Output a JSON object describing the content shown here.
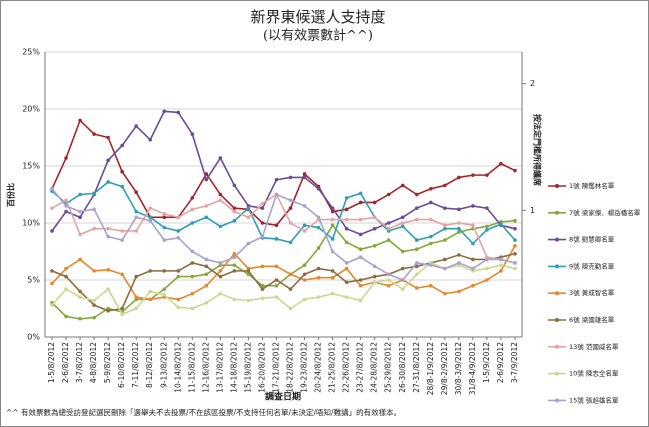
{
  "chart_data": {
    "type": "line",
    "title": "新界東候選人支持度",
    "subtitle": "(以有效票數計^^)",
    "ylabel": "百份比",
    "y2label": "按法定門檻所得議席",
    "xlabel": "調查日期",
    "footnote": "^^ 有效票數為總受訪登記選民刪除「選舉夫不去投票/不在該區投票/不支持任何名單/未決定/唔知/難講」的有效樣本。",
    "categories": [
      "1-5/8/2012",
      "2-6/8/2012",
      "3-7/8/2012",
      "4-8/8/2012",
      "5-9/8/2012",
      "6-10/8/2012",
      "7-11/8/2012",
      "8-12/8/2012",
      "9-13/8/2012",
      "10-14/8/2012",
      "11-15/8/2012",
      "12-16/8/2012",
      "13-17/8/2012",
      "14-18/8/2012",
      "15-19/8/2012",
      "16-20/8/2012",
      "17-21/8/2012",
      "18-22/8/2012",
      "19-23/8/2012",
      "20-24/8/2012",
      "21-25/8/2012",
      "22-26/8/2012",
      "23-27/8/2012",
      "24-28/8/2012",
      "25-29/8/2012",
      "26-30/8/2012",
      "27-31/8/2012",
      "28/8-1/9/2012",
      "29/8-2/9/2012",
      "30/8-3/9/2012",
      "31/8-4/9/2012",
      "1-5/9/2012",
      "2-6/9/2012",
      "3-7/9/2012"
    ],
    "ylim": [
      0,
      25
    ],
    "yticks": [
      {
        "value": 0,
        "label": "0%"
      },
      {
        "value": 5,
        "label": "5%"
      },
      {
        "value": 10,
        "label": "10%"
      },
      {
        "value": 15,
        "label": "15%"
      },
      {
        "value": 20,
        "label": "20%"
      },
      {
        "value": 25,
        "label": "25%"
      }
    ],
    "y2lim": [
      0,
      2.25
    ],
    "y2ticks": [
      1,
      2
    ],
    "grid": true,
    "legend": "right",
    "series": [
      {
        "name": "1號 陳鑑林名單",
        "color": "#a3262c",
        "values": [
          13,
          15.7,
          19,
          17.8,
          17.5,
          14.5,
          12.7,
          10.5,
          10.5,
          10.5,
          12.2,
          14.3,
          12.5,
          11.3,
          11.2,
          10,
          9.8,
          11.3,
          14.3,
          13.2,
          11,
          11.2,
          11.8,
          11.8,
          12.5,
          13.3,
          12.5,
          13,
          13.3,
          14,
          14.2,
          14.2,
          15.2,
          14.6
        ]
      },
      {
        "name": "7號 梁家傑、楊岳橋名單",
        "color": "#86a83a",
        "values": [
          3,
          1.8,
          1.6,
          1.7,
          2.5,
          2.2,
          3.3,
          3.3,
          4.2,
          5.3,
          5.3,
          5.5,
          6.3,
          6.3,
          5.5,
          4.5,
          4.5,
          5.5,
          6.3,
          7.8,
          9.8,
          8.3,
          7.7,
          8,
          8.5,
          7.5,
          7.7,
          8.2,
          8.5,
          9.2,
          9.5,
          9.7,
          10.1,
          10.2
        ]
      },
      {
        "name": "8號 劉慧卿名單",
        "color": "#6b4b96",
        "values": [
          9.3,
          11,
          10.5,
          12.5,
          15.5,
          16.8,
          18.5,
          17.3,
          19.8,
          19.7,
          17.8,
          13.8,
          15.7,
          13.3,
          11.5,
          11.3,
          13.8,
          14,
          14,
          13,
          11.3,
          9.5,
          9,
          9.5,
          10,
          10.5,
          11.3,
          11.8,
          11.3,
          11.2,
          11.5,
          11.3,
          9.8,
          9.5
        ]
      },
      {
        "name": "9號 陳克勤名單",
        "color": "#2e9fb3",
        "values": [
          12.8,
          11.7,
          12.5,
          12.6,
          13.6,
          13.2,
          11,
          10.5,
          9.6,
          9.3,
          10,
          10.5,
          9.7,
          10.2,
          11.3,
          8.7,
          8.6,
          8.3,
          9.8,
          9.6,
          8.6,
          12.2,
          12.6,
          10.5,
          9.3,
          9.7,
          8.5,
          8.8,
          9.5,
          9.5,
          8.2,
          9.4,
          9.9,
          8.5
        ]
      },
      {
        "name": "3號 黃成智名單",
        "color": "#e8862c",
        "values": [
          4.7,
          6,
          6.8,
          5.8,
          5.9,
          5.5,
          3.5,
          3.3,
          3.5,
          3.3,
          3.8,
          4.5,
          5.8,
          7.3,
          6,
          6.2,
          6.2,
          5.5,
          5,
          5.2,
          5.2,
          6,
          4.5,
          4.8,
          4.5,
          5,
          4.3,
          4.5,
          3.8,
          4,
          4.5,
          5,
          5.8,
          8
        ]
      },
      {
        "name": "6號 梁國雄名單",
        "color": "#8c6c3f",
        "values": [
          5.8,
          5.3,
          4,
          2.8,
          2.3,
          2.5,
          5.3,
          5.8,
          5.8,
          5.8,
          6.5,
          6.2,
          5.3,
          5.8,
          5.8,
          4.2,
          5,
          4.2,
          5.5,
          6,
          5.8,
          4.8,
          5,
          5.3,
          5.5,
          6,
          6.2,
          6.5,
          6.8,
          7.2,
          6.8,
          6.8,
          7,
          7.3
        ]
      },
      {
        "name": "13號 范國威名單",
        "color": "#e7a3a3",
        "values": [
          11.3,
          12,
          9,
          9.5,
          9.5,
          9.3,
          9.3,
          11.3,
          10.8,
          10.5,
          11.2,
          11.5,
          12,
          11,
          10.5,
          11.7,
          12.5,
          10,
          9.3,
          10.3,
          10.3,
          10.3,
          10.3,
          10.5,
          9.5,
          10,
          10.3,
          10.3,
          9.8,
          10,
          9.8,
          7,
          6.8,
          6.5
        ]
      },
      {
        "name": "10號 陳志全名單",
        "color": "#c9d98f",
        "values": [
          2.8,
          4.2,
          3.5,
          3.2,
          4.2,
          2,
          2.5,
          4,
          3.7,
          2.6,
          2.5,
          3,
          3.8,
          3.3,
          3.2,
          3.4,
          3.5,
          2.5,
          3.3,
          3.5,
          3.8,
          3.5,
          3.2,
          4.8,
          5,
          4.2,
          5.5,
          6.5,
          6,
          6.3,
          5.8,
          6,
          6.3,
          6
        ]
      },
      {
        "name": "15號 張超雄名單",
        "color": "#a9a2cb",
        "values": [
          13,
          11.5,
          11,
          11.2,
          8.8,
          8.5,
          10.5,
          10.2,
          8.5,
          8.7,
          7.5,
          6.8,
          6.5,
          7,
          8.2,
          8.8,
          12.5,
          12,
          11.5,
          10.5,
          7.5,
          6.5,
          7,
          6.2,
          5.5,
          5,
          6.5,
          6.3,
          6,
          6.5,
          6,
          6.8,
          6.8,
          6.5
        ]
      }
    ]
  }
}
